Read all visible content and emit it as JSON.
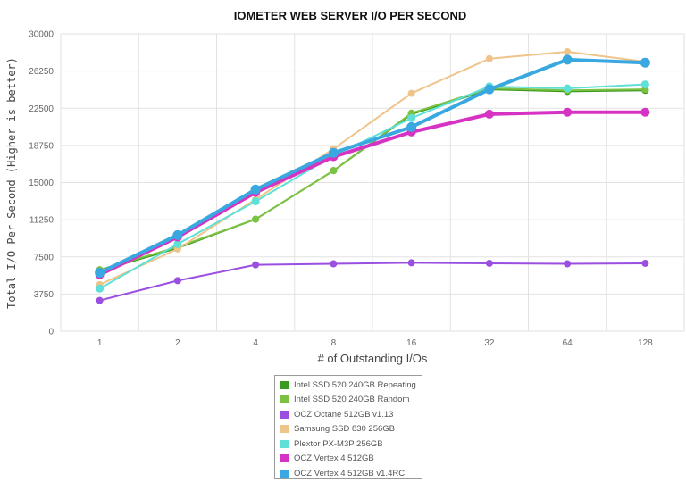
{
  "chart_data": {
    "type": "line",
    "title": "IOMETER WEB SERVER I/O PER SECOND",
    "xlabel": "# of Outstanding I/Os",
    "ylabel": "Total I/O Per Second (Higher is better)",
    "categories": [
      "1",
      "2",
      "4",
      "8",
      "16",
      "32",
      "64",
      "128"
    ],
    "yticks": [
      "0",
      "3750",
      "7500",
      "11250",
      "15000",
      "18750",
      "22500",
      "26250",
      "30000"
    ],
    "ylim": [
      0,
      30000
    ],
    "grid": true,
    "legend_position": "bottom",
    "series": [
      {
        "name": "Intel SSD 520 240GB Repeating",
        "color": "#3a9a1f",
        "values": [
          6100,
          8400,
          11300,
          16200,
          21900,
          24400,
          24200,
          24300
        ]
      },
      {
        "name": "Intel SSD 520 240GB Random",
        "color": "#7cc242",
        "values": [
          6200,
          8500,
          11300,
          16200,
          22000,
          24500,
          24300,
          24400
        ]
      },
      {
        "name": "OCZ Octane 512GB v1.13",
        "color": "#9b4fe0",
        "values": [
          3100,
          5100,
          6700,
          6800,
          6900,
          6850,
          6800,
          6850
        ]
      },
      {
        "name": "Samsung SSD 830 256GB",
        "color": "#efc48a",
        "values": [
          4700,
          8300,
          13300,
          18400,
          24000,
          27500,
          28200,
          27200
        ]
      },
      {
        "name": "Plextor PX-M3P 256GB",
        "color": "#5ee0d8",
        "values": [
          4300,
          8800,
          13100,
          17700,
          21500,
          24700,
          24500,
          24900
        ]
      },
      {
        "name": "OCZ Vertex 4 512GB",
        "color": "#d633c4",
        "values": [
          5700,
          9500,
          14000,
          17600,
          20100,
          21900,
          22100,
          22100
        ]
      },
      {
        "name": "OCZ Vertex 4 512GB v1.4RC",
        "color": "#3aa8e0",
        "values": [
          5900,
          9700,
          14300,
          18000,
          20600,
          24400,
          27400,
          27100
        ]
      }
    ]
  }
}
